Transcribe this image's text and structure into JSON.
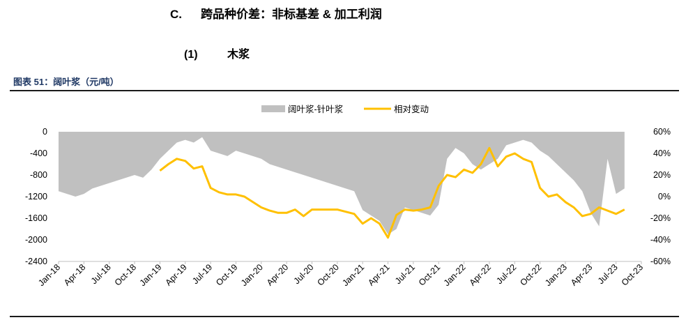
{
  "header": {
    "section_num": "C.",
    "section_title": "跨品种价差：非标基差 & 加工利润",
    "sub_num": "(1)",
    "sub_title": "木浆"
  },
  "figure": {
    "title": "图表 51：阔叶浆（元/吨）"
  },
  "colors": {
    "area": "#C0C0C0",
    "line": "#FFC000",
    "axis": "#BFBFBF"
  },
  "chart_data": {
    "type": "area",
    "legend_position": "top",
    "grid": false,
    "series": [
      {
        "name": "阔叶浆-针叶浆",
        "type": "area",
        "axis": "left",
        "x": [
          "2018-01",
          "2018-02",
          "2018-03",
          "2018-04",
          "2018-05",
          "2018-06",
          "2018-07",
          "2018-08",
          "2018-09",
          "2018-10",
          "2018-11",
          "2018-12",
          "2019-01",
          "2019-02",
          "2019-03",
          "2019-04",
          "2019-05",
          "2019-06",
          "2019-07",
          "2019-08",
          "2019-09",
          "2019-10",
          "2019-11",
          "2019-12",
          "2020-01",
          "2020-02",
          "2020-03",
          "2020-04",
          "2020-05",
          "2020-06",
          "2020-07",
          "2020-08",
          "2020-09",
          "2020-10",
          "2020-11",
          "2020-12",
          "2021-01",
          "2021-02",
          "2021-03",
          "2021-04",
          "2021-05",
          "2021-06",
          "2021-07",
          "2021-08",
          "2021-09",
          "2021-10",
          "2021-11",
          "2021-12",
          "2022-01",
          "2022-02",
          "2022-03",
          "2022-04",
          "2022-05",
          "2022-06",
          "2022-07",
          "2022-08",
          "2022-09",
          "2022-10",
          "2022-11",
          "2022-12",
          "2023-01",
          "2023-02",
          "2023-03",
          "2023-04",
          "2023-05",
          "2023-06",
          "2023-07",
          "2023-08"
        ],
        "values": [
          -1100,
          -1150,
          -1200,
          -1150,
          -1050,
          -1000,
          -950,
          -900,
          -850,
          -800,
          -850,
          -700,
          -500,
          -350,
          -200,
          -150,
          -200,
          -100,
          -350,
          -400,
          -450,
          -350,
          -400,
          -450,
          -500,
          -600,
          -650,
          -700,
          -750,
          -800,
          -850,
          -900,
          -950,
          -1000,
          -1050,
          -1100,
          -1450,
          -1550,
          -1650,
          -1900,
          -1800,
          -1400,
          -1450,
          -1500,
          -1550,
          -1350,
          -500,
          -300,
          -400,
          -600,
          -700,
          -600,
          -500,
          -250,
          -200,
          -150,
          -200,
          -350,
          -450,
          -600,
          -750,
          -900,
          -1100,
          -1500,
          -1750,
          -500,
          -1150,
          -1050
        ]
      },
      {
        "name": "相对变动",
        "type": "line",
        "axis": "right",
        "x": [
          "2019-01",
          "2019-02",
          "2019-03",
          "2019-04",
          "2019-05",
          "2019-06",
          "2019-07",
          "2019-08",
          "2019-09",
          "2019-10",
          "2019-11",
          "2019-12",
          "2020-01",
          "2020-02",
          "2020-03",
          "2020-04",
          "2020-05",
          "2020-06",
          "2020-07",
          "2020-08",
          "2020-09",
          "2020-10",
          "2020-11",
          "2020-12",
          "2021-01",
          "2021-02",
          "2021-03",
          "2021-04",
          "2021-05",
          "2021-06",
          "2021-07",
          "2021-08",
          "2021-09",
          "2021-10",
          "2021-11",
          "2021-12",
          "2022-01",
          "2022-02",
          "2022-03",
          "2022-04",
          "2022-05",
          "2022-06",
          "2022-07",
          "2022-08",
          "2022-09",
          "2022-10",
          "2022-11",
          "2022-12",
          "2023-01",
          "2023-02",
          "2023-03",
          "2023-04",
          "2023-05",
          "2023-06",
          "2023-07",
          "2023-08"
        ],
        "values": [
          0.24,
          0.3,
          0.35,
          0.33,
          0.26,
          0.28,
          0.08,
          0.04,
          0.02,
          0.02,
          0.0,
          -0.05,
          -0.1,
          -0.13,
          -0.15,
          -0.15,
          -0.12,
          -0.18,
          -0.12,
          -0.12,
          -0.12,
          -0.12,
          -0.14,
          -0.16,
          -0.25,
          -0.2,
          -0.25,
          -0.38,
          -0.17,
          -0.12,
          -0.13,
          -0.12,
          -0.1,
          0.1,
          0.2,
          0.18,
          0.25,
          0.22,
          0.3,
          0.45,
          0.28,
          0.37,
          0.4,
          0.35,
          0.32,
          0.08,
          0.0,
          0.02,
          -0.05,
          -0.1,
          -0.18,
          -0.16,
          -0.1,
          -0.13,
          -0.16,
          -0.12
        ]
      }
    ],
    "left_axis": {
      "ylim": [
        -2400,
        0
      ],
      "ticks": [
        0,
        -400,
        -800,
        -1200,
        -1600,
        -2000,
        -2400
      ],
      "tick_labels": [
        "0",
        "-400",
        "-800",
        "-1200",
        "-1600",
        "-2000",
        "-2400"
      ]
    },
    "right_axis": {
      "ylim": [
        -0.6,
        0.6
      ],
      "ticks": [
        0.6,
        0.4,
        0.2,
        0,
        -0.2,
        -0.4,
        -0.6
      ],
      "tick_labels": [
        "60%",
        "40%",
        "20%",
        "0%",
        "-20%",
        "-40%",
        "-60%"
      ]
    },
    "x_axis": {
      "range": [
        "2018-01",
        "2023-10"
      ],
      "tick_labels": [
        "Jan-18",
        "Apr-18",
        "Jul-18",
        "Oct-18",
        "Jan-19",
        "Apr-19",
        "Jul-19",
        "Oct-19",
        "Jan-20",
        "Apr-20",
        "Jul-20",
        "Oct-20",
        "Jan-21",
        "Apr-21",
        "Jul-21",
        "Oct-21",
        "Jan-22",
        "Apr-22",
        "Jul-22",
        "Oct-22",
        "Jan-23",
        "Apr-23",
        "Jul-23",
        "Oct-23"
      ],
      "tick_months": [
        "2018-01",
        "2018-04",
        "2018-07",
        "2018-10",
        "2019-01",
        "2019-04",
        "2019-07",
        "2019-10",
        "2020-01",
        "2020-04",
        "2020-07",
        "2020-10",
        "2021-01",
        "2021-04",
        "2021-07",
        "2021-10",
        "2022-01",
        "2022-04",
        "2022-07",
        "2022-10",
        "2023-01",
        "2023-04",
        "2023-07",
        "2023-10"
      ]
    }
  }
}
